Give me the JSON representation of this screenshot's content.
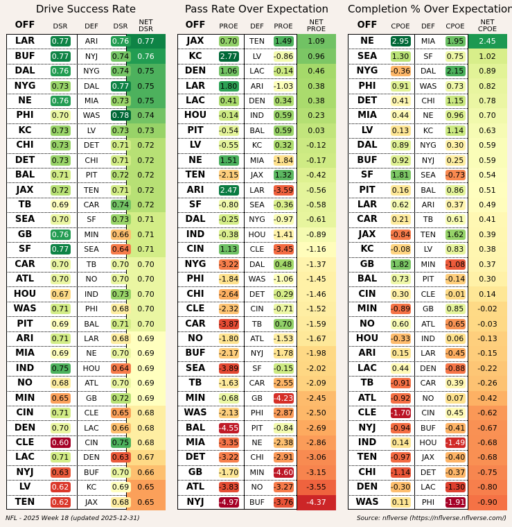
{
  "footer": {
    "left": "NFL - 2025 Week 18 (updated 2025-12-31)",
    "right": "Source: nflverse (https://nflverse.nflverse.com/)"
  },
  "panels": [
    {
      "title": "Drive Success Rate",
      "headers": {
        "off": "OFF",
        "off_metric": "DSR",
        "def": "DEF",
        "def_metric": "DSR",
        "net1": "NET",
        "net2": "DSR"
      },
      "decimals": 2,
      "signed": false,
      "rows": [
        {
          "off": "LAR",
          "ov": 0.77,
          "def": "ARI",
          "dv": 0.76,
          "net": 0.77
        },
        {
          "off": "BUF",
          "ov": 0.77,
          "def": "NYJ",
          "dv": 0.74,
          "net": 0.76
        },
        {
          "off": "DAL",
          "ov": 0.76,
          "def": "NYG",
          "dv": 0.74,
          "net": 0.75
        },
        {
          "off": "NYG",
          "ov": 0.73,
          "def": "DAL",
          "dv": 0.77,
          "net": 0.75
        },
        {
          "off": "NE",
          "ov": 0.76,
          "def": "MIA",
          "dv": 0.73,
          "net": 0.75
        },
        {
          "off": "PHI",
          "ov": 0.7,
          "def": "WAS",
          "dv": 0.78,
          "net": 0.74
        },
        {
          "off": "KC",
          "ov": 0.73,
          "def": "LV",
          "dv": 0.73,
          "net": 0.73
        },
        {
          "off": "CHI",
          "ov": 0.73,
          "def": "DET",
          "dv": 0.71,
          "net": 0.72
        },
        {
          "off": "DET",
          "ov": 0.73,
          "def": "CHI",
          "dv": 0.71,
          "net": 0.72
        },
        {
          "off": "BAL",
          "ov": 0.71,
          "def": "PIT",
          "dv": 0.72,
          "net": 0.72
        },
        {
          "off": "JAX",
          "ov": 0.72,
          "def": "TEN",
          "dv": 0.71,
          "net": 0.72
        },
        {
          "off": "TB",
          "ov": 0.69,
          "def": "CAR",
          "dv": 0.74,
          "net": 0.72
        },
        {
          "off": "SEA",
          "ov": 0.7,
          "def": "SF",
          "dv": 0.73,
          "net": 0.71
        },
        {
          "off": "GB",
          "ov": 0.76,
          "def": "MIN",
          "dv": 0.66,
          "net": 0.71
        },
        {
          "off": "SF",
          "ov": 0.77,
          "def": "SEA",
          "dv": 0.64,
          "net": 0.71
        },
        {
          "off": "CAR",
          "ov": 0.7,
          "def": "TB",
          "dv": 0.7,
          "net": 0.7
        },
        {
          "off": "ATL",
          "ov": 0.7,
          "def": "NO",
          "dv": 0.7,
          "net": 0.7
        },
        {
          "off": "HOU",
          "ov": 0.67,
          "def": "IND",
          "dv": 0.73,
          "net": 0.7
        },
        {
          "off": "WAS",
          "ov": 0.71,
          "def": "PHI",
          "dv": 0.68,
          "net": 0.7
        },
        {
          "off": "PIT",
          "ov": 0.69,
          "def": "BAL",
          "dv": 0.71,
          "net": 0.7
        },
        {
          "off": "ARI",
          "ov": 0.71,
          "def": "LAR",
          "dv": 0.68,
          "net": 0.69
        },
        {
          "off": "MIA",
          "ov": 0.69,
          "def": "NE",
          "dv": 0.7,
          "net": 0.69
        },
        {
          "off": "IND",
          "ov": 0.75,
          "def": "HOU",
          "dv": 0.64,
          "net": 0.69
        },
        {
          "off": "NO",
          "ov": 0.68,
          "def": "ATL",
          "dv": 0.7,
          "net": 0.69
        },
        {
          "off": "MIN",
          "ov": 0.65,
          "def": "GB",
          "dv": 0.72,
          "net": 0.69
        },
        {
          "off": "CIN",
          "ov": 0.71,
          "def": "CLE",
          "dv": 0.65,
          "net": 0.68
        },
        {
          "off": "DEN",
          "ov": 0.7,
          "def": "LAC",
          "dv": 0.66,
          "net": 0.68
        },
        {
          "off": "CLE",
          "ov": 0.6,
          "def": "CIN",
          "dv": 0.75,
          "net": 0.68
        },
        {
          "off": "LAC",
          "ov": 0.71,
          "def": "DEN",
          "dv": 0.63,
          "net": 0.67
        },
        {
          "off": "NYJ",
          "ov": 0.63,
          "def": "BUF",
          "dv": 0.7,
          "net": 0.66
        },
        {
          "off": "LV",
          "ov": 0.62,
          "def": "KC",
          "dv": 0.69,
          "net": 0.65
        },
        {
          "off": "TEN",
          "ov": 0.62,
          "def": "JAX",
          "dv": 0.68,
          "net": 0.65
        }
      ]
    },
    {
      "title": "Pass Rate Over Expectation",
      "headers": {
        "off": "OFF",
        "off_metric": "PROE",
        "def": "DEF",
        "def_metric": "PROE",
        "net1": "NET",
        "net2": "PROE"
      },
      "decimals": 2,
      "signed": true,
      "rows": [
        {
          "off": "JAX",
          "ov": 0.7,
          "def": "TEN",
          "dv": 1.49,
          "net": 1.09
        },
        {
          "off": "KC",
          "ov": 2.77,
          "def": "LV",
          "dv": -0.86,
          "net": 0.96
        },
        {
          "off": "DEN",
          "ov": 1.06,
          "def": "LAC",
          "dv": -0.14,
          "net": 0.46
        },
        {
          "off": "LAR",
          "ov": 1.8,
          "def": "ARI",
          "dv": -1.03,
          "net": 0.38
        },
        {
          "off": "LAC",
          "ov": 0.41,
          "def": "DEN",
          "dv": 0.34,
          "net": 0.38
        },
        {
          "off": "HOU",
          "ov": -0.14,
          "def": "IND",
          "dv": 0.59,
          "net": 0.23
        },
        {
          "off": "PIT",
          "ov": -0.54,
          "def": "BAL",
          "dv": 0.59,
          "net": 0.03
        },
        {
          "off": "LV",
          "ov": -0.55,
          "def": "KC",
          "dv": 0.32,
          "net": -0.12
        },
        {
          "off": "NE",
          "ov": 1.51,
          "def": "MIA",
          "dv": -1.84,
          "net": -0.17
        },
        {
          "off": "TEN",
          "ov": -2.15,
          "def": "JAX",
          "dv": 1.32,
          "net": -0.42
        },
        {
          "off": "ARI",
          "ov": 2.47,
          "def": "LAR",
          "dv": -3.59,
          "net": -0.56
        },
        {
          "off": "SF",
          "ov": -0.8,
          "def": "SEA",
          "dv": -0.36,
          "net": -0.58
        },
        {
          "off": "DAL",
          "ov": -0.25,
          "def": "NYG",
          "dv": -0.97,
          "net": -0.61
        },
        {
          "off": "IND",
          "ov": -0.38,
          "def": "HOU",
          "dv": -1.41,
          "net": -0.89
        },
        {
          "off": "CIN",
          "ov": 1.13,
          "def": "CLE",
          "dv": -3.45,
          "net": -1.16
        },
        {
          "off": "NYG",
          "ov": -3.22,
          "def": "DAL",
          "dv": 0.48,
          "net": -1.37
        },
        {
          "off": "PHI",
          "ov": -1.84,
          "def": "WAS",
          "dv": -1.06,
          "net": -1.45
        },
        {
          "off": "CHI",
          "ov": -2.64,
          "def": "DET",
          "dv": -0.29,
          "net": -1.46
        },
        {
          "off": "CLE",
          "ov": -2.32,
          "def": "CIN",
          "dv": -0.71,
          "net": -1.52
        },
        {
          "off": "CAR",
          "ov": -3.87,
          "def": "TB",
          "dv": 0.7,
          "net": -1.59
        },
        {
          "off": "NO",
          "ov": -1.8,
          "def": "ATL",
          "dv": -1.53,
          "net": -1.67
        },
        {
          "off": "BUF",
          "ov": -2.17,
          "def": "NYJ",
          "dv": -1.78,
          "net": -1.98
        },
        {
          "off": "SEA",
          "ov": -3.89,
          "def": "SF",
          "dv": -0.15,
          "net": -2.02
        },
        {
          "off": "TB",
          "ov": -1.63,
          "def": "CAR",
          "dv": -2.55,
          "net": -2.09
        },
        {
          "off": "MIN",
          "ov": -0.68,
          "def": "GB",
          "dv": -4.23,
          "net": -2.45
        },
        {
          "off": "WAS",
          "ov": -2.13,
          "def": "PHI",
          "dv": -2.87,
          "net": -2.5
        },
        {
          "off": "BAL",
          "ov": -4.55,
          "def": "PIT",
          "dv": -0.84,
          "net": -2.69
        },
        {
          "off": "MIA",
          "ov": -3.35,
          "def": "NE",
          "dv": -2.38,
          "net": -2.86
        },
        {
          "off": "DET",
          "ov": -3.22,
          "def": "CHI",
          "dv": -2.91,
          "net": -3.06
        },
        {
          "off": "GB",
          "ov": -1.7,
          "def": "MIN",
          "dv": -4.6,
          "net": -3.15
        },
        {
          "off": "ATL",
          "ov": -3.83,
          "def": "NO",
          "dv": -3.27,
          "net": -3.55
        },
        {
          "off": "NYJ",
          "ov": -4.97,
          "def": "BUF",
          "dv": -3.76,
          "net": -4.37
        }
      ]
    },
    {
      "title": "Completion % Over Expectation",
      "headers": {
        "off": "OFF",
        "off_metric": "CPOE",
        "def": "DEF",
        "def_metric": "CPOE",
        "net1": "NET",
        "net2": "CPOE"
      },
      "decimals": 2,
      "signed": true,
      "rows": [
        {
          "off": "NE",
          "ov": 2.95,
          "def": "MIA",
          "dv": 1.95,
          "net": 2.45
        },
        {
          "off": "SEA",
          "ov": 1.3,
          "def": "SF",
          "dv": 0.75,
          "net": 1.02
        },
        {
          "off": "NYG",
          "ov": -0.36,
          "def": "DAL",
          "dv": 2.15,
          "net": 0.89
        },
        {
          "off": "PHI",
          "ov": 0.91,
          "def": "WAS",
          "dv": 0.73,
          "net": 0.82
        },
        {
          "off": "DET",
          "ov": 0.41,
          "def": "CHI",
          "dv": 1.15,
          "net": 0.78
        },
        {
          "off": "MIA",
          "ov": 0.44,
          "def": "NE",
          "dv": 0.96,
          "net": 0.7
        },
        {
          "off": "LV",
          "ov": 0.13,
          "def": "KC",
          "dv": 1.14,
          "net": 0.63
        },
        {
          "off": "DAL",
          "ov": 0.89,
          "def": "NYG",
          "dv": 0.3,
          "net": 0.59
        },
        {
          "off": "BUF",
          "ov": 0.92,
          "def": "NYJ",
          "dv": 0.25,
          "net": 0.59
        },
        {
          "off": "SF",
          "ov": 1.81,
          "def": "SEA",
          "dv": -0.73,
          "net": 0.54
        },
        {
          "off": "PIT",
          "ov": 0.16,
          "def": "BAL",
          "dv": 0.86,
          "net": 0.51
        },
        {
          "off": "LAR",
          "ov": 0.62,
          "def": "ARI",
          "dv": 0.37,
          "net": 0.49
        },
        {
          "off": "CAR",
          "ov": 0.21,
          "def": "TB",
          "dv": 0.61,
          "net": 0.41
        },
        {
          "off": "JAX",
          "ov": -0.84,
          "def": "TEN",
          "dv": 1.62,
          "net": 0.39
        },
        {
          "off": "KC",
          "ov": -0.08,
          "def": "LV",
          "dv": 0.83,
          "net": 0.38
        },
        {
          "off": "GB",
          "ov": 1.82,
          "def": "MIN",
          "dv": -1.08,
          "net": 0.37
        },
        {
          "off": "BAL",
          "ov": 0.73,
          "def": "PIT",
          "dv": -0.14,
          "net": 0.3
        },
        {
          "off": "CIN",
          "ov": 0.3,
          "def": "CLE",
          "dv": -0.01,
          "net": 0.14
        },
        {
          "off": "MIN",
          "ov": -0.89,
          "def": "GB",
          "dv": 0.85,
          "net": -0.02
        },
        {
          "off": "NO",
          "ov": 0.6,
          "def": "ATL",
          "dv": -0.65,
          "net": -0.03
        },
        {
          "off": "HOU",
          "ov": -0.33,
          "def": "IND",
          "dv": 0.06,
          "net": -0.13
        },
        {
          "off": "ARI",
          "ov": 0.15,
          "def": "LAR",
          "dv": -0.45,
          "net": -0.15
        },
        {
          "off": "LAC",
          "ov": 0.44,
          "def": "DEN",
          "dv": -0.88,
          "net": -0.22
        },
        {
          "off": "TB",
          "ov": -0.91,
          "def": "CAR",
          "dv": 0.39,
          "net": -0.26
        },
        {
          "off": "ATL",
          "ov": -0.92,
          "def": "NO",
          "dv": 0.07,
          "net": -0.42
        },
        {
          "off": "CLE",
          "ov": -1.7,
          "def": "CIN",
          "dv": 0.45,
          "net": -0.62
        },
        {
          "off": "NYJ",
          "ov": -0.94,
          "def": "BUF",
          "dv": -0.41,
          "net": -0.67
        },
        {
          "off": "IND",
          "ov": 0.14,
          "def": "HOU",
          "dv": -1.49,
          "net": -0.68
        },
        {
          "off": "TEN",
          "ov": -0.97,
          "def": "JAX",
          "dv": -0.4,
          "net": -0.68
        },
        {
          "off": "CHI",
          "ov": -1.14,
          "def": "DET",
          "dv": -0.37,
          "net": -0.75
        },
        {
          "off": "DEN",
          "ov": -0.3,
          "def": "LAC",
          "dv": -1.3,
          "net": -0.8
        },
        {
          "off": "WAS",
          "ov": 0.11,
          "def": "PHI",
          "dv": -1.91,
          "net": -0.9
        }
      ]
    }
  ],
  "chart_data": {
    "type": "table",
    "subtitle": "NFL - 2025 Week 18",
    "colormap": [
      "#a50026",
      "#d73027",
      "#f46d43",
      "#fdae61",
      "#fee08b",
      "#ffffbf",
      "#d9ef8b",
      "#a6d96a",
      "#66bd63",
      "#1a9850",
      "#006837"
    ]
  }
}
